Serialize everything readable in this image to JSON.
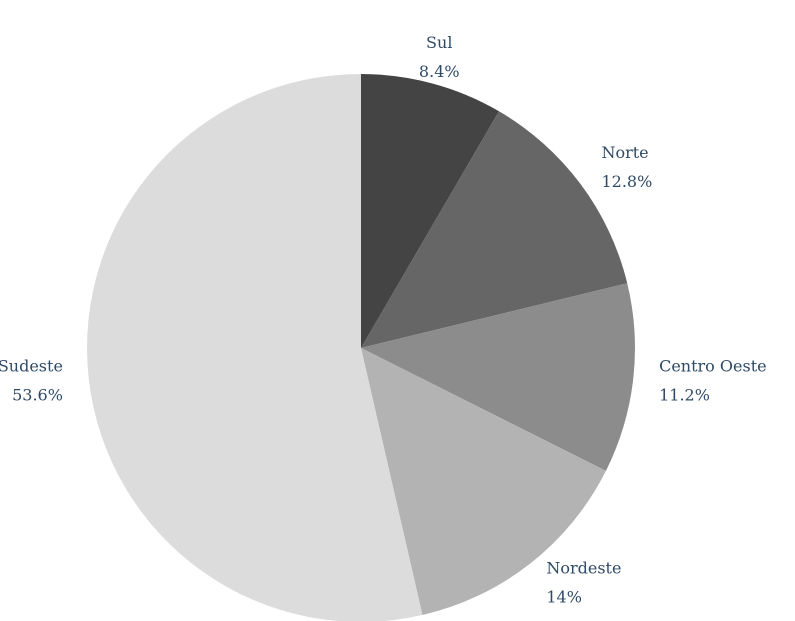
{
  "chart_data": {
    "type": "pie",
    "categories": [
      "Sul",
      "Norte",
      "Centro Oeste",
      "Nordeste",
      "Sudeste"
    ],
    "values": [
      8.4,
      12.8,
      11.2,
      14,
      53.6
    ],
    "value_labels": [
      "8.4%",
      "12.8%",
      "11.2%",
      "14%",
      "53.6%"
    ],
    "colors": [
      "#444444",
      "#666666",
      "#8c8c8c",
      "#b3b3b3",
      "#dcdcdc"
    ]
  }
}
